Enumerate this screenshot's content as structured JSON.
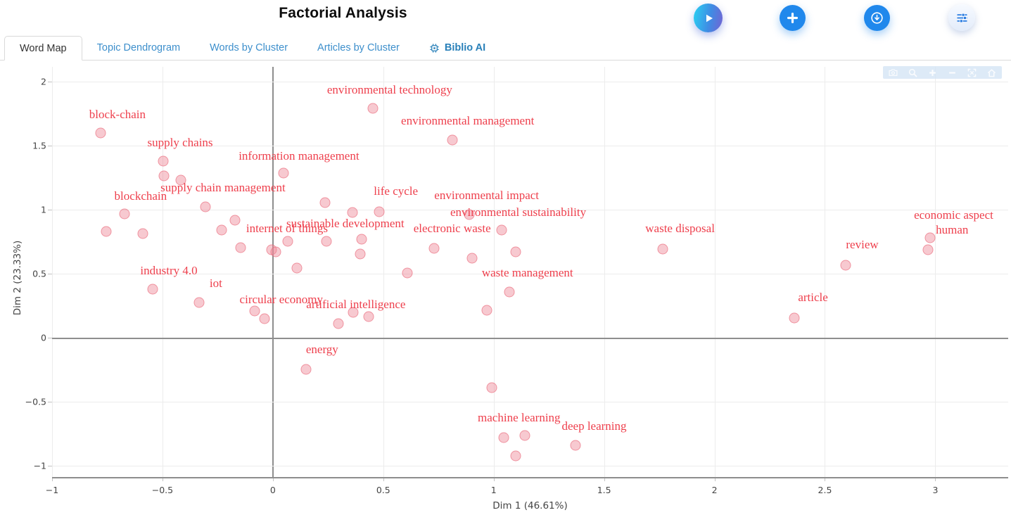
{
  "header": {
    "title": "Factorial Analysis",
    "buttons": [
      {
        "name": "play"
      },
      {
        "name": "add"
      },
      {
        "name": "download"
      },
      {
        "name": "settings"
      }
    ]
  },
  "tabs": [
    {
      "label": "Word Map",
      "active": true
    },
    {
      "label": "Topic Dendrogram",
      "active": false
    },
    {
      "label": "Words by Cluster",
      "active": false
    },
    {
      "label": "Articles by Cluster",
      "active": false
    },
    {
      "label": "Biblio AI",
      "active": false,
      "icon": "chip-icon"
    }
  ],
  "modebar": {
    "icons": [
      "camera",
      "zoom",
      "zoom-in",
      "zoom-out",
      "autoscale",
      "reset-axes"
    ]
  },
  "colors": {
    "accent_blue": "#2088ec",
    "tab_blue": "#3d8fcc",
    "label_red": "#ee3f4c",
    "marker_fill": "rgba(238,136,150,0.45)",
    "marker_border": "rgba(233,100,118,0.55)",
    "grid": "#ececec",
    "axis": "#8e8e8e"
  },
  "chart_data": {
    "type": "scatter",
    "title": "",
    "xlabel": "Dim 1 (46.61%)",
    "ylabel": "Dim 2 (23.33%)",
    "xlim": [
      -1,
      3.33
    ],
    "ylim": [
      -1.088,
      2.115
    ],
    "xticks": [
      -1,
      -0.5,
      0,
      0.5,
      1,
      1.5,
      2,
      2.5,
      3
    ],
    "yticks": [
      -1,
      -0.5,
      0,
      0.5,
      1,
      1.5,
      2
    ],
    "grid": true,
    "zerolines": true,
    "legend": false,
    "points": [
      {
        "x": -0.78,
        "y": 1.6
      },
      {
        "x": 0.452,
        "y": 1.791
      },
      {
        "x": 0.812,
        "y": 1.544
      },
      {
        "x": -0.497,
        "y": 1.379
      },
      {
        "x": 0.048,
        "y": 1.286
      },
      {
        "x": -0.494,
        "y": 1.264
      },
      {
        "x": -0.417,
        "y": 1.231
      },
      {
        "x": -0.306,
        "y": 1.022
      },
      {
        "x": -0.672,
        "y": 0.967
      },
      {
        "x": -0.755,
        "y": 0.83
      },
      {
        "x": -0.589,
        "y": 0.813
      },
      {
        "x": 0.235,
        "y": 1.055
      },
      {
        "x": 0.362,
        "y": 0.975
      },
      {
        "x": 0.481,
        "y": 0.985
      },
      {
        "x": 0.888,
        "y": 0.962
      },
      {
        "x": 1.035,
        "y": 0.842
      },
      {
        "x": -0.172,
        "y": 0.915
      },
      {
        "x": -0.232,
        "y": 0.838
      },
      {
        "x": -0.147,
        "y": 0.705
      },
      {
        "x": -0.006,
        "y": 0.685
      },
      {
        "x": 0.012,
        "y": 0.668
      },
      {
        "x": 0.068,
        "y": 0.755
      },
      {
        "x": 0.243,
        "y": 0.75
      },
      {
        "x": 0.402,
        "y": 0.77
      },
      {
        "x": 0.395,
        "y": 0.655
      },
      {
        "x": 0.109,
        "y": 0.545
      },
      {
        "x": 0.608,
        "y": 0.505
      },
      {
        "x": 0.73,
        "y": 0.695
      },
      {
        "x": 0.901,
        "y": 0.62
      },
      {
        "x": 1.1,
        "y": 0.672
      },
      {
        "x": 1.071,
        "y": 0.357
      },
      {
        "x": 0.97,
        "y": 0.214
      },
      {
        "x": -0.545,
        "y": 0.379
      },
      {
        "x": -0.334,
        "y": 0.275
      },
      {
        "x": -0.082,
        "y": 0.21
      },
      {
        "x": -0.039,
        "y": 0.15
      },
      {
        "x": 0.298,
        "y": 0.11
      },
      {
        "x": 0.365,
        "y": 0.2
      },
      {
        "x": 0.434,
        "y": 0.165
      },
      {
        "x": 0.15,
        "y": -0.25
      },
      {
        "x": 0.99,
        "y": -0.39
      },
      {
        "x": 1.045,
        "y": -0.78
      },
      {
        "x": 1.14,
        "y": -0.765
      },
      {
        "x": 1.1,
        "y": -0.925
      },
      {
        "x": 1.37,
        "y": -0.84
      },
      {
        "x": 1.764,
        "y": 0.692
      },
      {
        "x": 2.595,
        "y": 0.565
      },
      {
        "x": 2.36,
        "y": 0.155
      },
      {
        "x": 2.975,
        "y": 0.78
      },
      {
        "x": 2.968,
        "y": 0.687
      }
    ],
    "annotations": [
      {
        "text": "environmental technology",
        "x": 0.529,
        "y": 1.934
      },
      {
        "text": "environmental management",
        "x": 0.882,
        "y": 1.692
      },
      {
        "text": "block-chain",
        "x": -0.704,
        "y": 1.742
      },
      {
        "text": "supply chains",
        "x": -0.42,
        "y": 1.522
      },
      {
        "text": "information management",
        "x": 0.118,
        "y": 1.418
      },
      {
        "text": "supply chain management",
        "x": -0.226,
        "y": 1.17
      },
      {
        "text": "blockchain",
        "x": -0.599,
        "y": 1.104
      },
      {
        "text": "life cycle",
        "x": 0.557,
        "y": 1.143
      },
      {
        "text": "environmental impact",
        "x": 0.968,
        "y": 1.11
      },
      {
        "text": "environmental sustainability",
        "x": 1.111,
        "y": 0.978
      },
      {
        "text": "sustainable development",
        "x": 0.328,
        "y": 0.89
      },
      {
        "text": "internet of things",
        "x": 0.064,
        "y": 0.852
      },
      {
        "text": "electronic waste",
        "x": 0.812,
        "y": 0.852
      },
      {
        "text": "industry 4.0",
        "x": -0.471,
        "y": 0.522
      },
      {
        "text": "iot",
        "x": -0.258,
        "y": 0.423
      },
      {
        "text": "circular economy",
        "x": 0.038,
        "y": 0.297
      },
      {
        "text": "artificial intelligence",
        "x": 0.376,
        "y": 0.258
      },
      {
        "text": "waste management",
        "x": 1.153,
        "y": 0.505
      },
      {
        "text": "waste disposal",
        "x": 1.844,
        "y": 0.852
      },
      {
        "text": "economic aspect",
        "x": 3.083,
        "y": 0.956
      },
      {
        "text": "human",
        "x": 3.076,
        "y": 0.841
      },
      {
        "text": "review",
        "x": 2.669,
        "y": 0.725
      },
      {
        "text": "article",
        "x": 2.446,
        "y": 0.313
      },
      {
        "text": "energy",
        "x": 0.223,
        "y": -0.093
      },
      {
        "text": "machine learning",
        "x": 1.115,
        "y": -0.626
      },
      {
        "text": "deep learning",
        "x": 1.455,
        "y": -0.692
      }
    ]
  }
}
